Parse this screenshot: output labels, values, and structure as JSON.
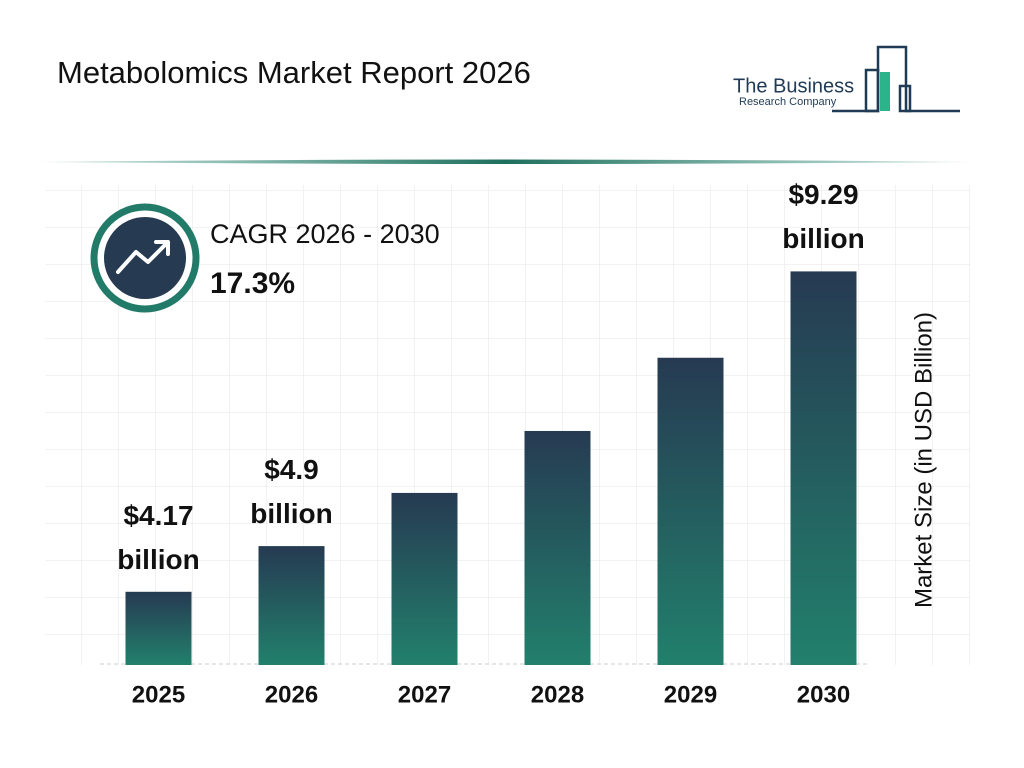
{
  "chart_data": {
    "type": "bar",
    "title": "Metabolomics Market Report 2026",
    "categories": [
      "2025",
      "2026",
      "2027",
      "2028",
      "2029",
      "2030"
    ],
    "values": [
      4.17,
      4.9,
      5.75,
      6.74,
      7.91,
      9.29
    ],
    "value_labels": [
      "$4.17 billion",
      "$4.9 billion",
      null,
      null,
      null,
      "$9.29 billion"
    ],
    "colors": [
      "#263a52",
      "#22806c"
    ],
    "ylim": [
      3,
      9.6
    ],
    "y_label": "Market Size (in USD Billion)",
    "cagr_label": "CAGR 2026 - 2030",
    "cagr_value": "17.3%"
  },
  "logo": {
    "line1": "The Business",
    "line2": "Research Company"
  }
}
